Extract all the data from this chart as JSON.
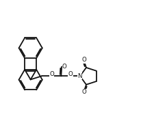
{
  "bg": "#ffffff",
  "lc": "#111111",
  "lw": 1.3,
  "fs": 6.2,
  "fig_w": 2.25,
  "fig_h": 1.99,
  "dpi": 100,
  "xlim": [
    0,
    9.5
  ],
  "ylim": [
    0,
    8.0
  ]
}
